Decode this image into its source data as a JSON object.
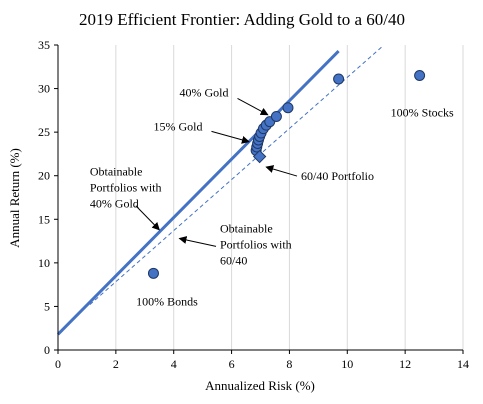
{
  "chart_data": {
    "type": "scatter",
    "title": "2019 Efficient Frontier: Adding Gold to a 60/40",
    "xlabel": "Annualized Risk (%)",
    "ylabel": "Annual Return (%)",
    "xlim": [
      0,
      14
    ],
    "ylim": [
      0,
      35
    ],
    "xticks": [
      0,
      2,
      4,
      6,
      8,
      10,
      12,
      14
    ],
    "yticks": [
      0,
      5,
      10,
      15,
      20,
      25,
      30,
      35
    ],
    "grid": "vertical",
    "colors": {
      "marker": "#4472C4",
      "marker_edge": "#1F3864",
      "line": "#4472C4",
      "grid": "#D9D9D9",
      "axis": "#000000"
    },
    "series": [
      {
        "marker": "circle",
        "points": [
          {
            "x": 3.3,
            "y": 8.8
          },
          {
            "x": 6.85,
            "y": 22.9
          },
          {
            "x": 6.87,
            "y": 23.3
          },
          {
            "x": 6.9,
            "y": 23.7
          },
          {
            "x": 6.93,
            "y": 24.1
          },
          {
            "x": 6.97,
            "y": 24.5
          },
          {
            "x": 7.02,
            "y": 24.9
          },
          {
            "x": 7.1,
            "y": 25.4
          },
          {
            "x": 7.2,
            "y": 25.8
          },
          {
            "x": 7.32,
            "y": 26.2
          },
          {
            "x": 7.55,
            "y": 26.8
          },
          {
            "x": 7.95,
            "y": 27.8
          },
          {
            "x": 9.7,
            "y": 31.1
          },
          {
            "x": 12.5,
            "y": 31.5
          }
        ]
      },
      {
        "marker": "diamond",
        "points": [
          {
            "x": 6.97,
            "y": 22.2
          }
        ]
      }
    ],
    "lines": [
      {
        "style": "solid",
        "from": [
          0,
          1.8
        ],
        "to": [
          9.7,
          34.3
        ]
      },
      {
        "style": "dashed",
        "from": [
          1.1,
          5.2
        ],
        "to": [
          11.2,
          34.8
        ]
      }
    ],
    "annotations": [
      {
        "id": "gold40",
        "text": [
          "40% Gold"
        ],
        "anchor_x": 4.2,
        "anchor_y": 29.1,
        "arrow_to": [
          7.25,
          27.0
        ]
      },
      {
        "id": "gold15",
        "text": [
          "15% Gold"
        ],
        "anchor_x": 3.3,
        "anchor_y": 25.2,
        "arrow_to": [
          6.6,
          23.9
        ]
      },
      {
        "id": "stocks",
        "text": [
          "100% Stocks"
        ],
        "anchor_x": 11.5,
        "anchor_y": 26.8,
        "arrow_to": null
      },
      {
        "id": "p6040",
        "text": [
          "60/40 Portfolio"
        ],
        "anchor_x": 8.4,
        "anchor_y": 19.5,
        "arrow_to": [
          7.2,
          21.0
        ]
      },
      {
        "id": "obtgold",
        "text": [
          "Obtainable",
          "Portfolios with",
          "40% Gold"
        ],
        "anchor_x": 1.1,
        "anchor_y": 20.0,
        "arrow_to": [
          3.5,
          13.8
        ]
      },
      {
        "id": "obt6040",
        "text": [
          "Obtainable",
          "Portfolios with",
          "60/40"
        ],
        "anchor_x": 5.6,
        "anchor_y": 13.5,
        "arrow_to": [
          4.2,
          12.8
        ]
      },
      {
        "id": "bonds",
        "text": [
          "100% Bonds"
        ],
        "anchor_x": 2.7,
        "anchor_y": 5.1,
        "arrow_to": null
      }
    ]
  }
}
